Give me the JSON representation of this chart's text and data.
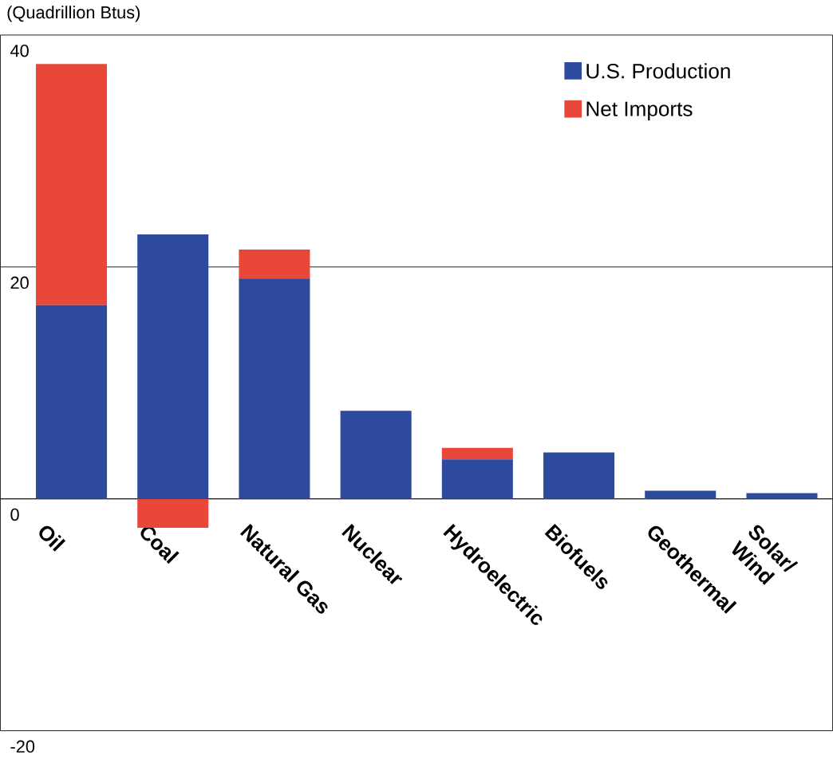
{
  "chart_data": {
    "type": "bar",
    "stacked": true,
    "ylabel": "(Quadrillion Btus)",
    "categories": [
      "Oil",
      "Coal",
      "Natural Gas",
      "Nuclear",
      "Hydroelectric",
      "Biofuels",
      "Geothermal",
      "Solar/\nWind"
    ],
    "series": [
      {
        "name": "U.S. Production",
        "color": "#2e4a9e",
        "values": [
          16.7,
          22.8,
          19.0,
          7.6,
          3.4,
          4.0,
          0.7,
          0.5
        ]
      },
      {
        "name": "Net Imports",
        "color": "#e8473a",
        "values": [
          20.8,
          -2.5,
          2.5,
          null,
          1.0,
          null,
          null,
          null
        ]
      }
    ],
    "ylim": [
      -20,
      40
    ],
    "yticks": [
      -20,
      0,
      20,
      40
    ],
    "grid": "y",
    "legend": "top right"
  }
}
